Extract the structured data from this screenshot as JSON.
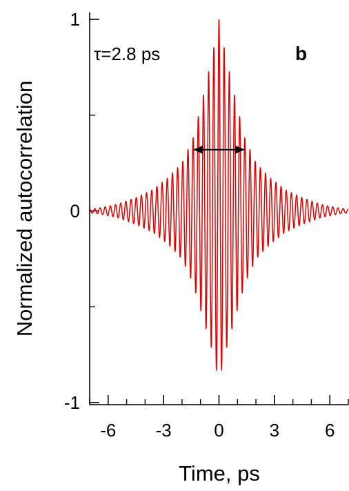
{
  "chart_data": {
    "type": "line",
    "xlabel": "Time, ps",
    "ylabel": "Normalized autocorrelation",
    "xlim": [
      -7.0,
      7.0
    ],
    "ylim": [
      -1.0,
      1.0
    ],
    "x_ticks": [
      -6,
      -3,
      0,
      3,
      6
    ],
    "x_minor_ticks": [
      -7,
      -5,
      -4,
      -2,
      -1,
      1,
      2,
      4,
      5,
      7
    ],
    "y_ticks": [
      -1,
      0,
      1
    ],
    "y_minor_ticks": [
      -0.5,
      0.5
    ],
    "x_tick_labels": [
      "-6",
      "-3",
      "0",
      "3",
      "6"
    ],
    "y_tick_labels": [
      "-1",
      "0",
      "1"
    ],
    "grid": false,
    "series": [
      {
        "color": "#e00000",
        "description": "oscillating interferometric autocorrelation, carrier period ~0.28 ps, decaying symmetric envelope",
        "envelope_t": [
          0.0,
          0.3,
          0.8,
          1.4,
          2.0,
          2.8,
          3.6,
          4.5,
          5.5,
          6.5,
          7.0
        ],
        "envelope_upper": [
          1.0,
          0.84,
          0.62,
          0.38,
          0.25,
          0.17,
          0.11,
          0.07,
          0.035,
          0.015,
          0.01
        ],
        "envelope_lower": [
          -0.9,
          -0.75,
          -0.58,
          -0.38,
          -0.25,
          -0.17,
          -0.11,
          -0.07,
          -0.035,
          -0.015,
          -0.01
        ],
        "carrier_period_ps": 0.28
      }
    ],
    "annotations": [
      {
        "text": "τ=2.8 ps"
      },
      {
        "text": "b"
      }
    ],
    "fwhm_arrow": {
      "x_start": -1.4,
      "x_end": 1.4,
      "y": 0.32,
      "color": "#000000"
    }
  }
}
